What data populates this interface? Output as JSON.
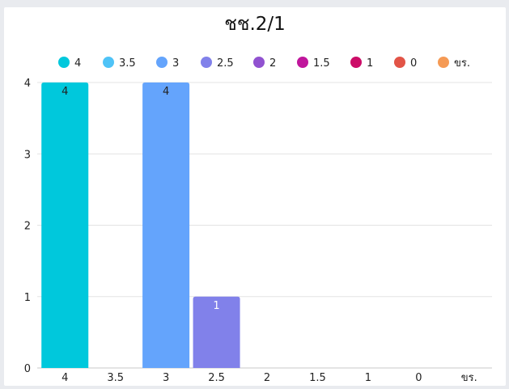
{
  "chart_data": {
    "type": "bar",
    "title": "ชช.2/1",
    "xlabel": "",
    "ylabel": "",
    "categories": [
      "4",
      "3.5",
      "3",
      "2.5",
      "2",
      "1.5",
      "1",
      "0",
      "ขร."
    ],
    "values": [
      4,
      0,
      4,
      1,
      0,
      0,
      0,
      0,
      0
    ],
    "data_labels": [
      "4",
      "",
      "4",
      "1",
      "",
      "",
      "",
      "",
      ""
    ],
    "legend": [
      "4",
      "3.5",
      "3",
      "2.5",
      "2",
      "1.5",
      "1",
      "0",
      "ขร."
    ],
    "legend_position": "top",
    "colors": [
      "#00c8dc",
      "#4fc3f7",
      "#64a4fc",
      "#8181ea",
      "#9152d0",
      "#c0169c",
      "#cc0c68",
      "#e25447",
      "#f59a55"
    ],
    "ylim": [
      0,
      4
    ],
    "yticks": [
      0,
      1,
      2,
      3,
      4
    ],
    "grid": true
  }
}
